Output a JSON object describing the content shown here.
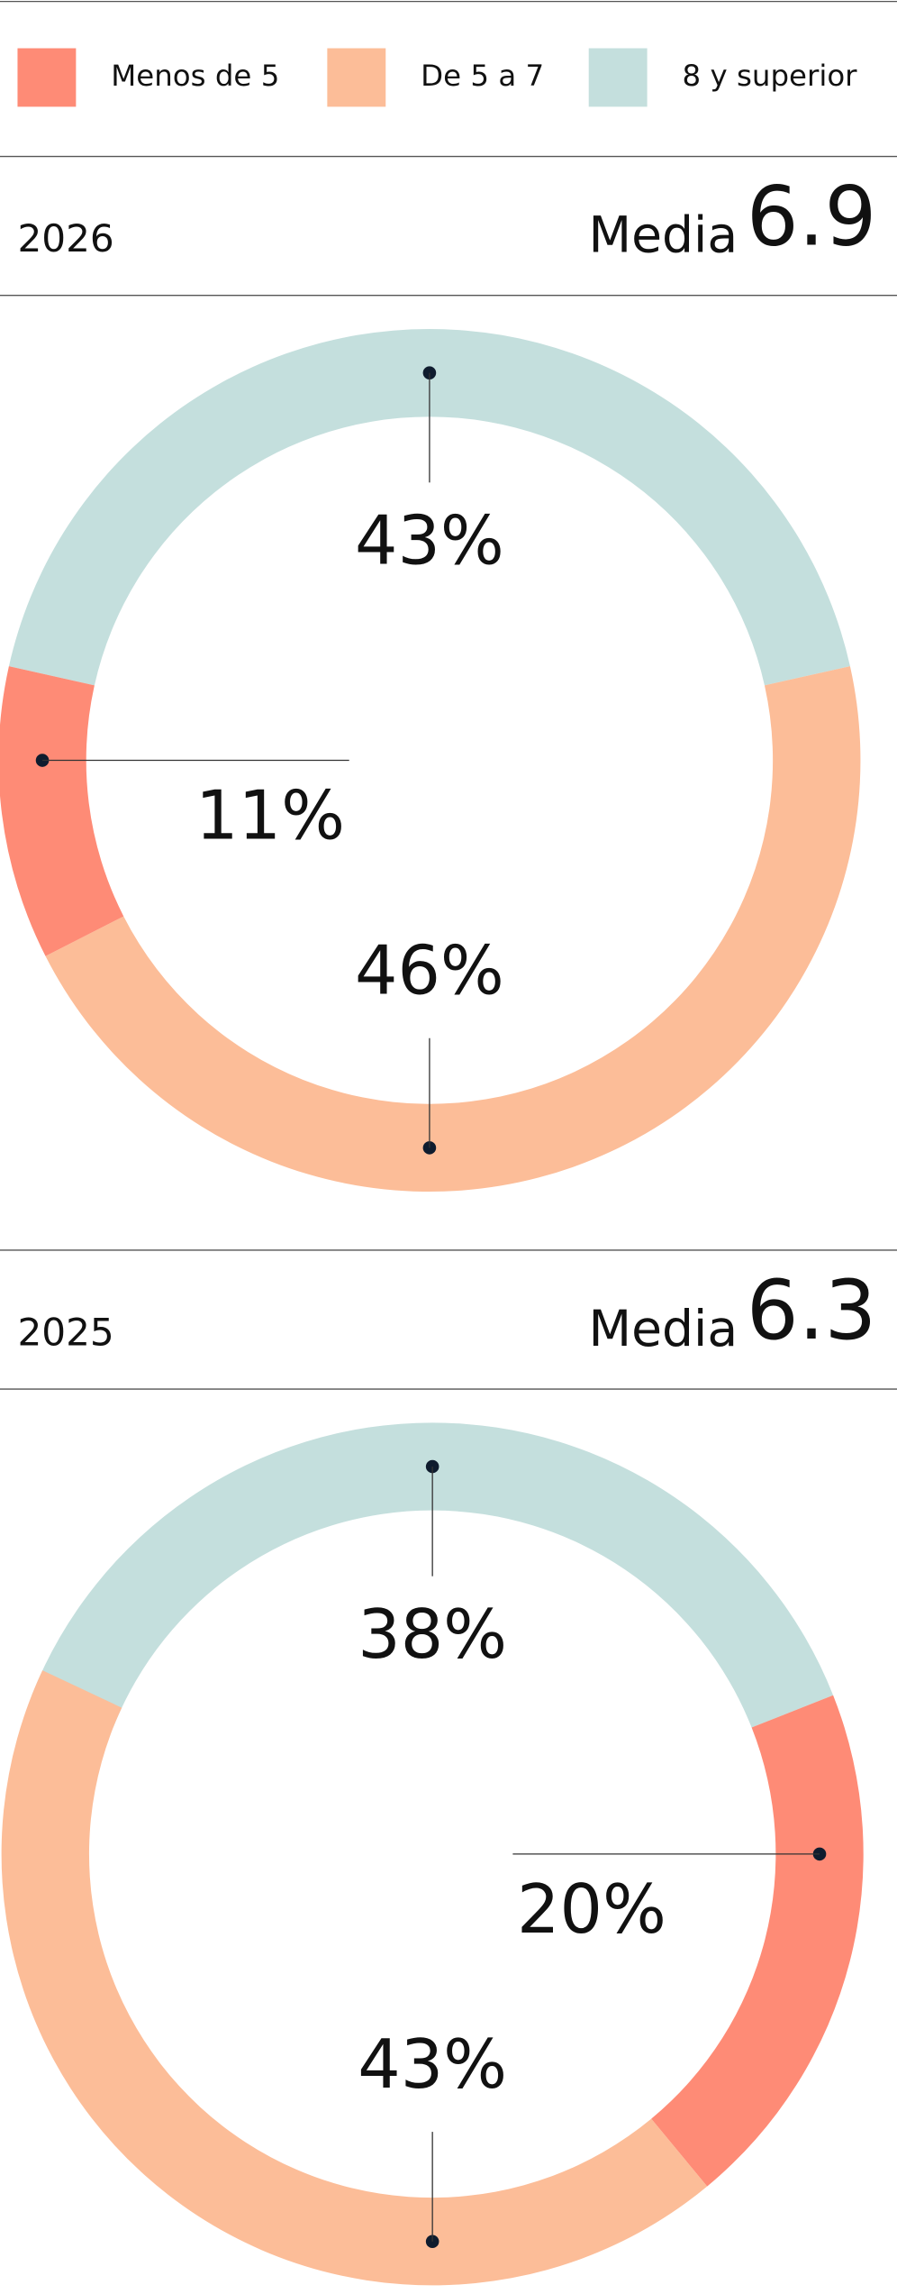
{
  "legend": {
    "items": [
      "Menos de 5",
      "De 5 a 7",
      "8 y superior"
    ],
    "colors": [
      "#fe8b76",
      "#fcbd98",
      "#c4dfdd"
    ]
  },
  "chart_data": [
    {
      "type": "pie",
      "title": "2026",
      "mean_label": "Media",
      "mean": 6.9,
      "categories": [
        "8 y superior",
        "De 5 a 7",
        "Menos de 5"
      ],
      "values": [
        43,
        46,
        11
      ],
      "value_labels": [
        "43%",
        "46%",
        "11%"
      ]
    },
    {
      "type": "pie",
      "title": "2025",
      "mean_label": "Media",
      "mean": 6.3,
      "categories": [
        "8 y superior",
        "Menos de 5",
        "De 5 a 7"
      ],
      "values": [
        38,
        20,
        43
      ],
      "value_labels": [
        "38%",
        "20%",
        "43%"
      ]
    }
  ]
}
